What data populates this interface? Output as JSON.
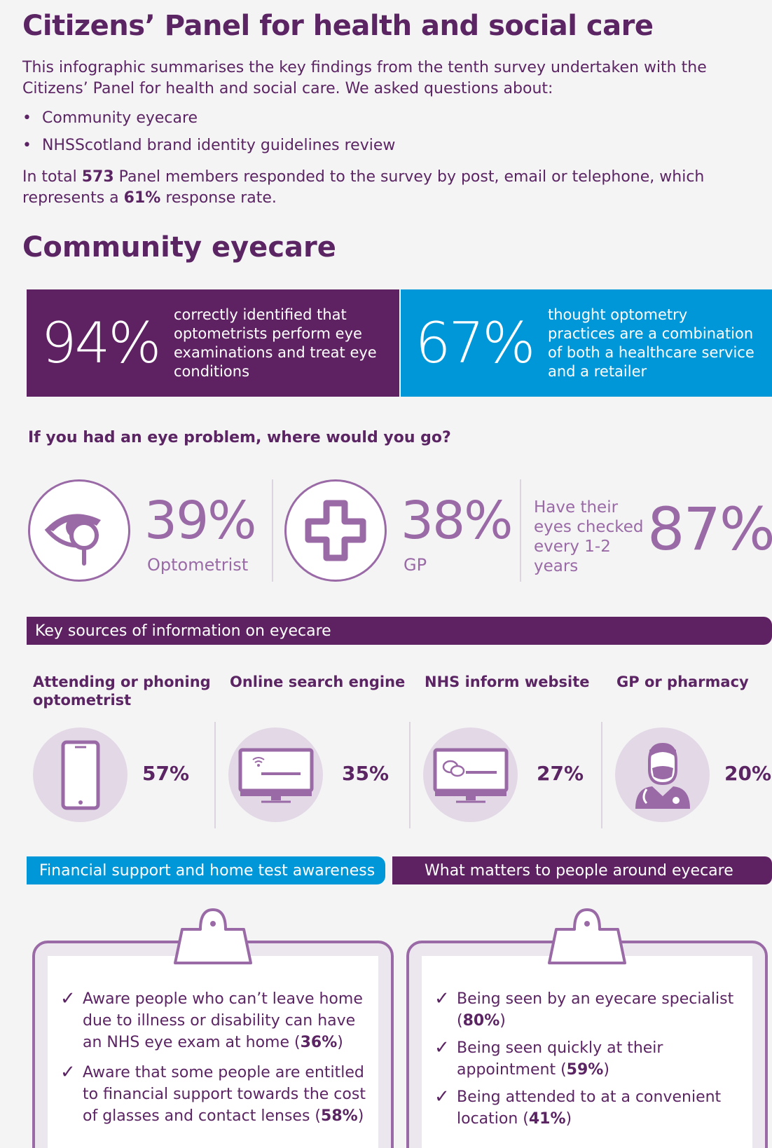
{
  "title": "Citizens’ Panel for health and social care",
  "intro": "This infographic summarises the key findings from the tenth survey undertaken with the Citizens’ Panel for health and social care. We asked questions about:",
  "topics": [
    "Community eyecare",
    "NHSScotland brand identity guidelines review"
  ],
  "total": {
    "prefix": "In total ",
    "count": "573",
    "middle": " Panel members responded to the survey by post, email or telephone, which represents a ",
    "rate": "61%",
    "suffix": " response rate."
  },
  "section_title": "Community eyecare",
  "stats": [
    {
      "pct": "94%",
      "text": "correctly identified that optometrists perform eye examinations and treat eye conditions",
      "color": "#5e2161"
    },
    {
      "pct": "67%",
      "text": "thought optometry practices are a combination of both a healthcare service and a retailer",
      "color": "#0097d9"
    }
  ],
  "question": "If you had an eye problem, where would you go?",
  "where": [
    {
      "pct": "39%",
      "label": "Optometrist",
      "icon": "eye-icon"
    },
    {
      "pct": "38%",
      "label": "GP",
      "icon": "medical-cross-icon"
    }
  ],
  "checked": {
    "text": "Have their eyes checked every 1-2 years",
    "pct": "87%"
  },
  "sources_heading": "Key sources of information on eyecare",
  "sources": [
    {
      "label": "Attending or phoning optometrist",
      "pct": "57%",
      "icon": "phone-icon"
    },
    {
      "label": "Online search engine",
      "pct": "35%",
      "icon": "monitor-search-icon"
    },
    {
      "label": "NHS inform website",
      "pct": "27%",
      "icon": "monitor-chat-icon"
    },
    {
      "label": "GP or pharmacy",
      "pct": "20%",
      "icon": "doctor-icon"
    }
  ],
  "tabs": {
    "left": "Financial support and home test awareness",
    "right": "What matters to people around eyecare"
  },
  "awareness": [
    {
      "text": "Aware people who can’t leave home due to illness or disability can have an NHS eye exam at home (",
      "pct": "36%",
      "end": ")"
    },
    {
      "text": "Aware that some people are entitled to financial support towards the cost of glasses and contact lenses (",
      "pct": "58%",
      "end": ")"
    }
  ],
  "matters": [
    {
      "text": "Being seen by an eyecare specialist (",
      "pct": "80%",
      "end": ")"
    },
    {
      "text": "Being seen quickly at their appointment (",
      "pct": "59%",
      "end": ")"
    },
    {
      "text": "Being attended to at a convenient location (",
      "pct": "41%",
      "end": ")"
    }
  ],
  "colors": {
    "purple": "#5e2161",
    "blue": "#0097d9",
    "lilac": "#9a6aa6"
  }
}
